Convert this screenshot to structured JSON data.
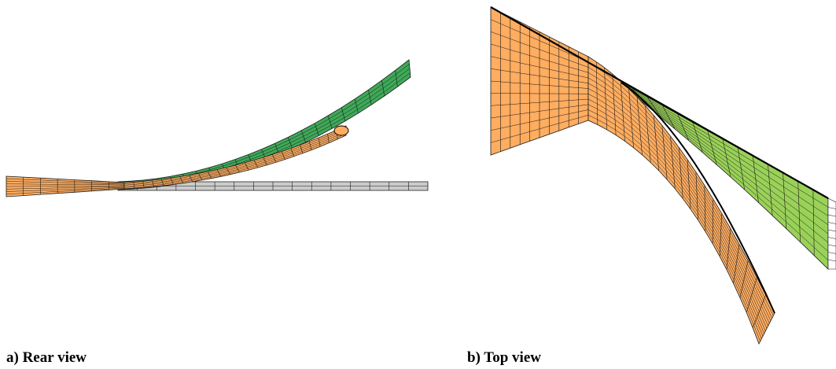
{
  "panels": [
    {
      "caption": "a) Rear view"
    },
    {
      "caption": "b) Top view"
    }
  ],
  "colors": {
    "orange_surface": "#FFAD60",
    "green_surface": "#3EA958",
    "green_surface_top": "#9AD158",
    "gray_surface": "#CBCBCB",
    "mesh_lines": "#1a1a1a",
    "edge_line": "#000000"
  }
}
